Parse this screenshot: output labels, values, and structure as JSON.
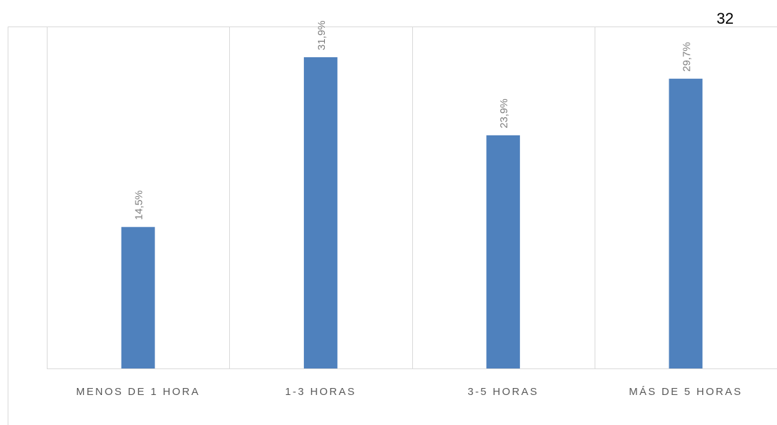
{
  "page": {
    "number": "32"
  },
  "chart_data": {
    "type": "bar",
    "categories": [
      "MENOS DE 1 HORA",
      "1-3 HORAS",
      "3-5 HORAS",
      "MÁS DE 5 HORAS"
    ],
    "values": [
      14.5,
      31.9,
      23.9,
      29.7
    ],
    "value_labels": [
      "14,5%",
      "31,9%",
      "23,9%",
      "29,7%"
    ],
    "title": "",
    "xlabel": "",
    "ylabel": "",
    "ylim": [
      0,
      35
    ],
    "grid": "vertical separators between categories",
    "legend": "none",
    "colors": {
      "bar": "#4f81bd",
      "label": "#7f7f7f",
      "grid": "#d9d9d9",
      "axis_text": "#595959"
    }
  }
}
